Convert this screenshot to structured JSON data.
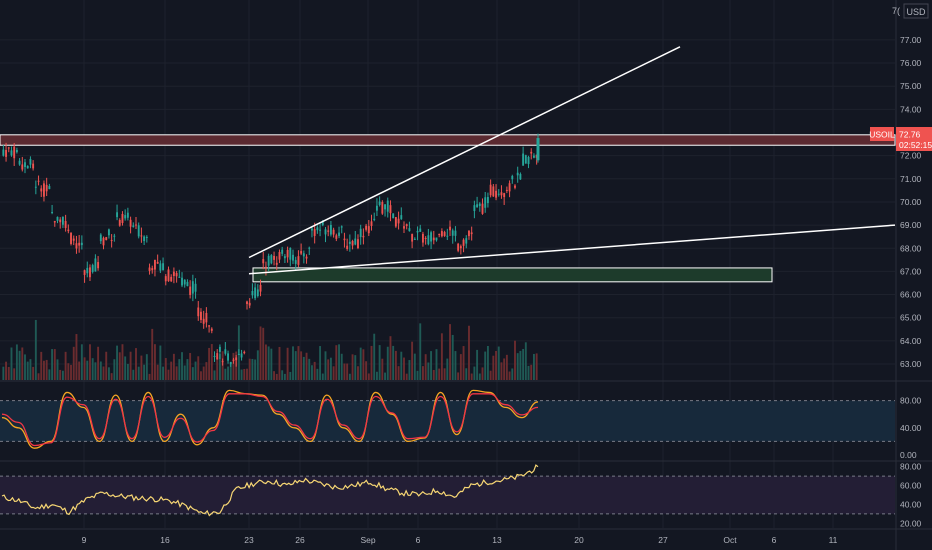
{
  "header": {
    "currency": "USD",
    "top_tick": "7("
  },
  "price_axis": {
    "ticks": [
      "77.00",
      "76.00",
      "75.00",
      "74.00",
      "72.00",
      "71.00",
      "70.00",
      "69.00",
      "68.00",
      "67.00",
      "66.00",
      "65.00",
      "64.00",
      "63.00"
    ]
  },
  "last_price_tag": {
    "symbol": "USOIL",
    "price": "72.76",
    "countdown": "02:52:15"
  },
  "stoch_axis": {
    "ticks": [
      "80.00",
      "40.00",
      "0.00"
    ]
  },
  "rsi_axis": {
    "ticks": [
      "80.00",
      "60.00",
      "40.00",
      "20.00"
    ]
  },
  "time_axis": {
    "labels": [
      "9",
      "16",
      "23",
      "26",
      "Sep",
      "6",
      "13",
      "20",
      "27",
      "Oct",
      "6",
      "11"
    ]
  },
  "colors": {
    "background": "#131722",
    "up": "#26a69a",
    "down": "#ef5350",
    "resistance_fill": "#5b2a31",
    "support_fill": "#1d3b2b",
    "stoch_k": "#f5a623",
    "stoch_d": "#f23645",
    "rsi": "#f7d774",
    "stoch_band": "#17293b",
    "rsi_band": "#231e35",
    "trendline": "#ffffff"
  },
  "chart_data": [
    {
      "type": "candlestick",
      "symbol": "USOIL",
      "ylim": [
        62.5,
        78.0
      ],
      "x": [
        "Aug 3",
        "Aug 4",
        "Aug 5",
        "Aug 6",
        "Aug 9",
        "Aug 10",
        "Aug 11",
        "Aug 12",
        "Aug 13",
        "Aug 16",
        "Aug 17",
        "Aug 18",
        "Aug 19",
        "Aug 20",
        "Aug 23",
        "Aug 24",
        "Aug 25",
        "Aug 26",
        "Aug 27",
        "Aug 30",
        "Aug 31",
        "Sep 1",
        "Sep 2",
        "Sep 3",
        "Sep 6",
        "Sep 7",
        "Sep 8",
        "Sep 9",
        "Sep 10",
        "Sep 13",
        "Sep 14",
        "Sep 15",
        "Sep 16"
      ],
      "close": [
        71.8,
        70.9,
        69.5,
        68.7,
        66.8,
        68.3,
        69.3,
        69.0,
        67.4,
        66.9,
        66.6,
        65.4,
        63.6,
        62.6,
        65.6,
        67.4,
        67.8,
        67.4,
        68.8,
        68.9,
        68.2,
        68.6,
        69.9,
        69.3,
        68.6,
        68.3,
        68.9,
        68.1,
        69.6,
        70.5,
        70.6,
        71.7,
        72.76
      ],
      "resistance_zone": [
        72.45,
        72.9
      ],
      "support_zone": [
        66.55,
        67.15
      ],
      "trendlines": [
        {
          "from": [
            "Aug 23",
            67.6
          ],
          "to": [
            "Sep 30",
            76.7
          ]
        },
        {
          "from": [
            "Aug 23",
            66.9
          ],
          "to": [
            "Oct 21",
            69.0
          ]
        }
      ],
      "last_price": 72.76
    },
    {
      "type": "line",
      "name": "Stochastic",
      "ylim": [
        0,
        100
      ],
      "bands": [
        20,
        80
      ],
      "series": [
        {
          "name": "%K",
          "values": [
            55,
            40,
            10,
            20,
            92,
            70,
            20,
            88,
            20,
            92,
            20,
            60,
            15,
            40,
            95,
            90,
            88,
            60,
            40,
            20,
            88,
            40,
            20,
            92,
            60,
            20,
            25,
            92,
            30,
            95,
            92,
            70,
            55,
            78
          ]
        },
        {
          "name": "%D",
          "values": [
            60,
            48,
            14,
            18,
            85,
            74,
            24,
            82,
            24,
            86,
            26,
            54,
            19,
            36,
            90,
            90,
            86,
            64,
            44,
            24,
            82,
            44,
            24,
            86,
            62,
            24,
            26,
            86,
            34,
            90,
            90,
            74,
            59,
            70
          ]
        }
      ]
    },
    {
      "type": "line",
      "name": "RSI",
      "ylim": [
        15,
        85
      ],
      "bands": [
        30,
        70
      ],
      "series": [
        {
          "name": "RSI",
          "values": [
            48,
            44,
            36,
            40,
            32,
            45,
            52,
            49,
            47,
            46,
            44,
            38,
            30,
            32,
            56,
            62,
            65,
            60,
            66,
            62,
            58,
            60,
            64,
            56,
            52,
            50,
            55,
            48,
            60,
            64,
            66,
            70,
            80
          ]
        }
      ]
    }
  ]
}
